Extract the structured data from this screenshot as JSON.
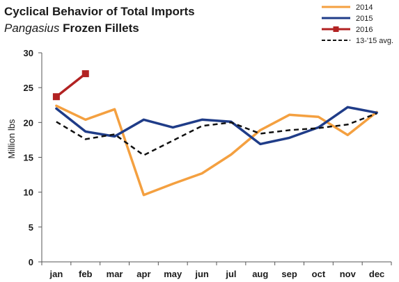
{
  "chart_data": {
    "type": "line",
    "title_line1": "Cyclical Behavior of Total Imports",
    "title_line2_italic": "Pangasius",
    "title_line2_rest": " Frozen Fillets",
    "ylabel": "Million lbs",
    "xlabel": "",
    "ylim": [
      0,
      30
    ],
    "yticks": [
      "0",
      "5",
      "10",
      "15",
      "20",
      "25",
      "30"
    ],
    "categories": [
      "jan",
      "feb",
      "mar",
      "apr",
      "may",
      "jun",
      "jul",
      "aug",
      "sep",
      "oct",
      "nov",
      "dec"
    ],
    "grid": false,
    "legend_position": "top-right",
    "series": [
      {
        "name": "2014",
        "color": "#F4A040",
        "style": "solid",
        "marker": "none",
        "values": [
          22.4,
          20.4,
          21.9,
          9.6,
          11.2,
          12.7,
          15.4,
          18.9,
          21.1,
          20.8,
          18.2,
          21.5
        ]
      },
      {
        "name": "2015",
        "color": "#1F3C88",
        "style": "solid",
        "marker": "none",
        "values": [
          22.0,
          18.7,
          18.0,
          20.4,
          19.3,
          20.4,
          20.1,
          16.9,
          17.8,
          19.3,
          22.2,
          21.4
        ]
      },
      {
        "name": "2016",
        "color": "#B22222",
        "style": "solid",
        "marker": "square",
        "values": [
          23.7,
          27.0,
          null,
          null,
          null,
          null,
          null,
          null,
          null,
          null,
          null,
          null
        ]
      },
      {
        "name": "13-'15 avg.",
        "color": "#111111",
        "style": "dashed",
        "marker": "none",
        "values": [
          20.1,
          17.6,
          18.3,
          15.3,
          17.4,
          19.5,
          20.0,
          18.4,
          18.9,
          19.2,
          19.7,
          21.3
        ]
      }
    ]
  }
}
